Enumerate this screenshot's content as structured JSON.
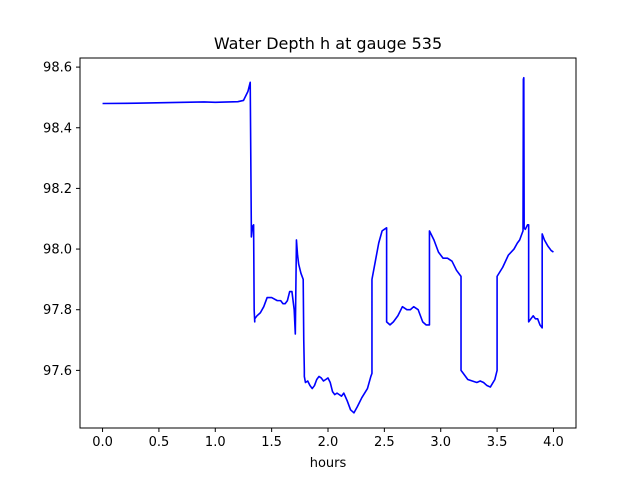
{
  "chart_data": {
    "type": "line",
    "title": "Water Depth h at gauge 535",
    "xlabel": "hours",
    "ylabel": "",
    "xlim": [
      -0.2,
      4.2
    ],
    "ylim": [
      97.41,
      98.63
    ],
    "xticks": [
      0.0,
      0.5,
      1.0,
      1.5,
      2.0,
      2.5,
      3.0,
      3.5,
      4.0
    ],
    "xtick_labels": [
      "0.0",
      "0.5",
      "1.0",
      "1.5",
      "2.0",
      "2.5",
      "3.0",
      "3.5",
      "4.0"
    ],
    "yticks": [
      97.6,
      97.8,
      98.0,
      98.2,
      98.4,
      98.6
    ],
    "ytick_labels": [
      "97.6",
      "97.8",
      "98.0",
      "98.2",
      "98.4",
      "98.6"
    ],
    "grid": false,
    "series": [
      {
        "color": "#0000ff",
        "x": [
          0.0,
          0.3,
          0.6,
          0.9,
          1.0,
          1.2,
          1.25,
          1.29,
          1.31,
          1.32,
          1.32,
          1.33,
          1.34,
          1.345,
          1.35,
          1.35,
          1.37,
          1.4,
          1.43,
          1.46,
          1.5,
          1.55,
          1.58,
          1.6,
          1.62,
          1.64,
          1.66,
          1.68,
          1.7,
          1.71,
          1.72,
          1.73,
          1.74,
          1.76,
          1.78,
          1.785,
          1.79,
          1.79,
          1.8,
          1.82,
          1.84,
          1.86,
          1.88,
          1.9,
          1.92,
          1.94,
          1.96,
          1.98,
          2.0,
          2.02,
          2.04,
          2.06,
          2.08,
          2.1,
          2.12,
          2.14,
          2.17,
          2.2,
          2.23,
          2.26,
          2.3,
          2.35,
          2.38,
          2.39,
          2.39,
          2.42,
          2.45,
          2.48,
          2.5,
          2.52,
          2.52,
          2.55,
          2.58,
          2.62,
          2.66,
          2.7,
          2.73,
          2.76,
          2.8,
          2.84,
          2.87,
          2.89,
          2.9,
          2.9,
          2.94,
          2.98,
          3.02,
          3.06,
          3.1,
          3.14,
          3.18,
          3.18,
          3.2,
          3.24,
          3.28,
          3.32,
          3.35,
          3.38,
          3.41,
          3.44,
          3.48,
          3.5,
          3.5,
          3.55,
          3.6,
          3.65,
          3.68,
          3.7,
          3.72,
          3.73,
          3.733,
          3.737,
          3.74,
          3.74,
          3.75,
          3.77,
          3.78,
          3.78,
          3.8,
          3.82,
          3.84,
          3.86,
          3.88,
          3.9,
          3.9,
          3.92,
          3.95,
          3.98,
          4.0
        ],
        "y": [
          98.48,
          98.481,
          98.483,
          98.485,
          98.484,
          98.486,
          98.49,
          98.52,
          98.55,
          98.06,
          98.04,
          98.075,
          98.08,
          97.8,
          97.76,
          97.77,
          97.78,
          97.79,
          97.81,
          97.84,
          97.84,
          97.83,
          97.83,
          97.82,
          97.82,
          97.83,
          97.86,
          97.86,
          97.8,
          97.72,
          98.03,
          97.98,
          97.95,
          97.92,
          97.9,
          97.7,
          97.6,
          97.58,
          97.56,
          97.565,
          97.55,
          97.54,
          97.55,
          97.57,
          97.58,
          97.575,
          97.565,
          97.57,
          97.575,
          97.56,
          97.53,
          97.52,
          97.525,
          97.52,
          97.515,
          97.525,
          97.5,
          97.47,
          97.46,
          97.48,
          97.51,
          97.54,
          97.58,
          97.59,
          97.9,
          97.96,
          98.02,
          98.06,
          98.065,
          98.07,
          97.76,
          97.75,
          97.76,
          97.78,
          97.81,
          97.8,
          97.8,
          97.81,
          97.8,
          97.76,
          97.75,
          97.75,
          97.75,
          98.06,
          98.03,
          97.99,
          97.97,
          97.97,
          97.96,
          97.93,
          97.91,
          97.6,
          97.59,
          97.57,
          97.565,
          97.56,
          97.565,
          97.56,
          97.55,
          97.545,
          97.57,
          97.6,
          97.91,
          97.94,
          97.98,
          98.0,
          98.02,
          98.03,
          98.05,
          98.06,
          98.56,
          98.565,
          98.07,
          98.07,
          98.065,
          98.08,
          98.08,
          97.76,
          97.77,
          97.78,
          97.77,
          97.77,
          97.75,
          97.74,
          98.05,
          98.03,
          98.01,
          97.995,
          97.99
        ]
      }
    ]
  }
}
